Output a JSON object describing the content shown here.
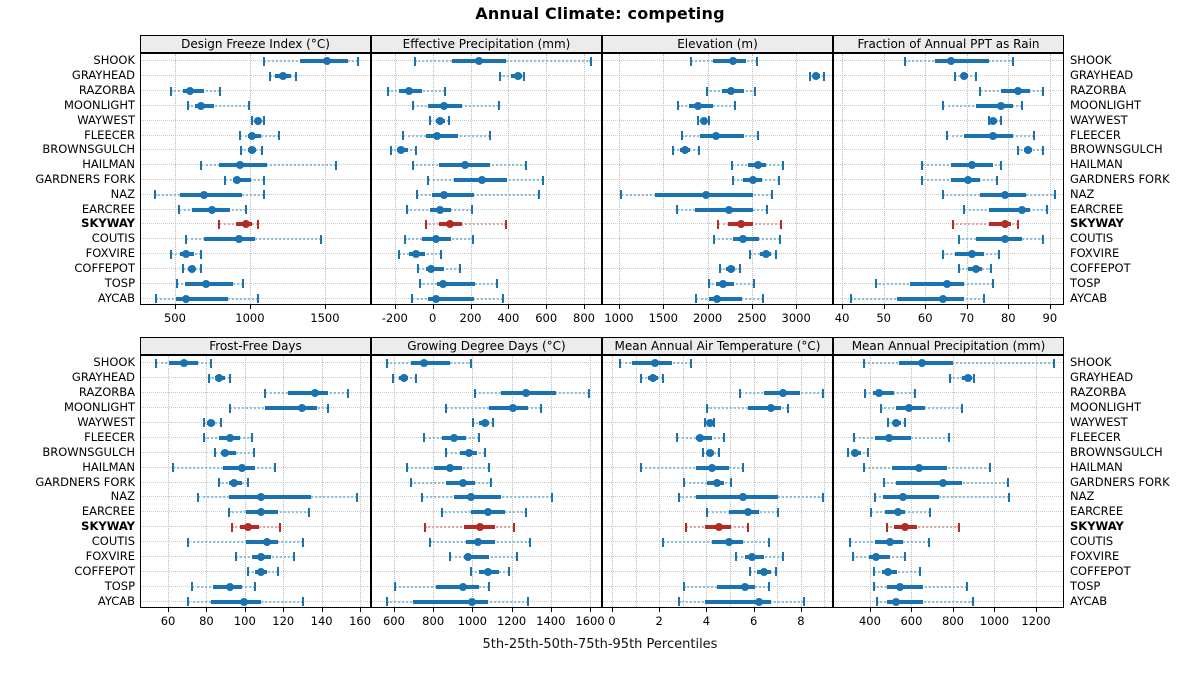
{
  "title": "Annual Climate: competing",
  "caption": "5th-25th-50th-75th-95th Percentiles",
  "colors": {
    "normal": "#1a72b0",
    "normal_light": "#8fc0de",
    "highlight": "#b32a26",
    "highlight_light": "#e0a9a4",
    "strip_bg": "#ececec",
    "grid": "#c4c4c4",
    "border": "#000000"
  },
  "chart_data": {
    "type": "dotplot-interval",
    "percentiles": [
      "5th",
      "25th",
      "50th",
      "75th",
      "95th"
    ],
    "legend_note": "thin whisker = 5th-95th, thick bar = 25th-75th, dot = median",
    "sites": [
      "SHOOK",
      "GRAYHEAD",
      "RAZORBA",
      "MOONLIGHT",
      "WAYWEST",
      "FLEECER",
      "BROWNSGULCH",
      "HAILMAN",
      "GARDNERS FORK",
      "NAZ",
      "EARCREE",
      "SKYWAY",
      "COUTIS",
      "FOXVIRE",
      "COFFEPOT",
      "TOSP",
      "AYCAB"
    ],
    "highlight_site": "SKYWAY",
    "panels": [
      {
        "label": "Design Freeze Index (°C)",
        "row": 0,
        "col": 0,
        "xlim": [
          267,
          1807
        ],
        "ticks": [
          500,
          1000,
          1500
        ],
        "values": [
          [
            1090,
            1330,
            1510,
            1650,
            1715
          ],
          [
            1130,
            1160,
            1215,
            1265,
            1300
          ],
          [
            470,
            545,
            595,
            690,
            795
          ],
          [
            580,
            625,
            665,
            755,
            985
          ],
          [
            1005,
            1030,
            1045,
            1060,
            1085
          ],
          [
            930,
            980,
            1010,
            1070,
            1185
          ],
          [
            935,
            980,
            1005,
            1035,
            1075
          ],
          [
            665,
            785,
            930,
            1105,
            1570
          ],
          [
            830,
            880,
            910,
            1000,
            1090
          ],
          [
            360,
            530,
            690,
            940,
            1090
          ],
          [
            520,
            610,
            740,
            860,
            970
          ],
          [
            790,
            900,
            965,
            1010,
            1050
          ],
          [
            565,
            690,
            920,
            1030,
            1470
          ],
          [
            470,
            525,
            570,
            620,
            665
          ],
          [
            545,
            580,
            605,
            630,
            665
          ],
          [
            505,
            560,
            700,
            880,
            950
          ],
          [
            365,
            500,
            570,
            845,
            1050
          ]
        ]
      },
      {
        "label": "Effective Precipitation (mm)",
        "row": 0,
        "col": 1,
        "xlim": [
          -326,
          895
        ],
        "ticks": [
          -200,
          0,
          200,
          400,
          600,
          800
        ],
        "values": [
          [
            -100,
            95,
            240,
            380,
            830
          ],
          [
            350,
            410,
            445,
            465,
            480
          ],
          [
            -240,
            -185,
            -130,
            -60,
            60
          ],
          [
            -110,
            -30,
            55,
            150,
            345
          ],
          [
            -20,
            10,
            35,
            60,
            80
          ],
          [
            -160,
            -40,
            20,
            130,
            300
          ],
          [
            -225,
            -195,
            -175,
            -135,
            -95
          ],
          [
            -110,
            30,
            165,
            300,
            490
          ],
          [
            -30,
            110,
            255,
            390,
            580
          ],
          [
            -90,
            -10,
            55,
            215,
            555
          ],
          [
            -140,
            -20,
            35,
            90,
            205
          ],
          [
            -40,
            30,
            85,
            150,
            380
          ],
          [
            -150,
            -60,
            10,
            90,
            210
          ],
          [
            -185,
            -130,
            -95,
            -45,
            40
          ],
          [
            -85,
            -40,
            -15,
            55,
            140
          ],
          [
            -70,
            20,
            50,
            220,
            335
          ],
          [
            -115,
            -30,
            10,
            215,
            365
          ]
        ]
      },
      {
        "label": "Elevation (m)",
        "row": 0,
        "col": 2,
        "xlim": [
          808,
          3416
        ],
        "ticks": [
          1000,
          1500,
          2000,
          2500,
          3000
        ],
        "values": [
          [
            1800,
            2050,
            2280,
            2420,
            2550
          ],
          [
            3145,
            3175,
            3210,
            3255,
            3300
          ],
          [
            1980,
            2150,
            2250,
            2400,
            2520
          ],
          [
            1650,
            1780,
            1880,
            2050,
            2300
          ],
          [
            1880,
            1925,
            1950,
            1975,
            2005
          ],
          [
            1700,
            1900,
            2080,
            2400,
            2560
          ],
          [
            1600,
            1680,
            1730,
            1790,
            1890
          ],
          [
            2270,
            2450,
            2560,
            2650,
            2840
          ],
          [
            2280,
            2390,
            2500,
            2600,
            2790
          ],
          [
            1010,
            1400,
            1970,
            2500,
            2720
          ],
          [
            1640,
            1850,
            2230,
            2500,
            2660
          ],
          [
            2110,
            2220,
            2370,
            2500,
            2820
          ],
          [
            2060,
            2280,
            2390,
            2570,
            2810
          ],
          [
            2470,
            2580,
            2650,
            2700,
            2760
          ],
          [
            2130,
            2200,
            2250,
            2300,
            2360
          ],
          [
            2000,
            2080,
            2160,
            2290,
            2510
          ],
          [
            1860,
            2000,
            2090,
            2380,
            2610
          ]
        ]
      },
      {
        "label": "Fraction of Annual PPT as Rain",
        "row": 0,
        "col": 3,
        "xlim": [
          37.8,
          93.4
        ],
        "ticks": [
          40,
          50,
          60,
          70,
          80,
          90
        ],
        "values": [
          [
            55,
            62,
            66,
            75,
            81
          ],
          [
            67,
            68.5,
            69,
            70,
            72
          ],
          [
            73,
            78,
            82,
            85,
            88
          ],
          [
            64,
            72,
            78,
            81,
            83
          ],
          [
            75,
            75.5,
            76,
            77,
            78
          ],
          [
            65,
            69,
            76,
            81,
            86
          ],
          [
            82,
            83.5,
            84.5,
            85.5,
            88
          ],
          [
            59,
            66,
            71,
            76,
            78
          ],
          [
            59,
            66,
            70,
            73,
            77
          ],
          [
            64,
            73,
            79,
            84,
            91
          ],
          [
            69,
            75,
            83,
            85,
            89
          ],
          [
            66.5,
            75,
            79,
            80.5,
            82
          ],
          [
            68,
            72,
            79,
            83,
            88
          ],
          [
            64,
            67,
            71,
            74,
            77.5
          ],
          [
            68,
            70,
            72,
            73.5,
            75.5
          ],
          [
            48,
            56,
            65,
            69,
            76
          ],
          [
            42,
            53,
            64,
            69,
            74
          ]
        ]
      },
      {
        "label": "Frost-Free Days",
        "row": 1,
        "col": 0,
        "xlim": [
          45.4,
          165.7
        ],
        "ticks": [
          60,
          80,
          100,
          120,
          140,
          160
        ],
        "values": [
          [
            53,
            60,
            68,
            75,
            82
          ],
          [
            81,
            84,
            86,
            89,
            92
          ],
          [
            110,
            122,
            136,
            143,
            153
          ],
          [
            92,
            110,
            129,
            137,
            143
          ],
          [
            78,
            80,
            82,
            84,
            87
          ],
          [
            78,
            86,
            92,
            97,
            103
          ],
          [
            84,
            87,
            89,
            95,
            104
          ],
          [
            62,
            88,
            98,
            105,
            115
          ],
          [
            86,
            91,
            94,
            98,
            101
          ],
          [
            75,
            91,
            108,
            134,
            158
          ],
          [
            91,
            100,
            108,
            117,
            133
          ],
          [
            93,
            97,
            101,
            107,
            118
          ],
          [
            70,
            100,
            111,
            117,
            130
          ],
          [
            95,
            103,
            108,
            113,
            125
          ],
          [
            101,
            105,
            108,
            111,
            117
          ],
          [
            72,
            83,
            92,
            98,
            105
          ],
          [
            70,
            82,
            99,
            108,
            130
          ]
        ]
      },
      {
        "label": "Growing Degree Days (°C)",
        "row": 1,
        "col": 1,
        "xlim": [
          483,
          1661
        ],
        "ticks": [
          600,
          800,
          1000,
          1200,
          1400,
          1600
        ],
        "values": [
          [
            560,
            680,
            750,
            880,
            990
          ],
          [
            590,
            620,
            645,
            665,
            705
          ],
          [
            1010,
            1140,
            1270,
            1420,
            1590
          ],
          [
            860,
            1080,
            1200,
            1280,
            1345
          ],
          [
            1000,
            1030,
            1060,
            1080,
            1100
          ],
          [
            750,
            840,
            900,
            960,
            1030
          ],
          [
            860,
            930,
            980,
            1020,
            1060
          ],
          [
            660,
            800,
            880,
            940,
            1080
          ],
          [
            680,
            860,
            945,
            1010,
            1090
          ],
          [
            740,
            900,
            990,
            1140,
            1400
          ],
          [
            840,
            990,
            1075,
            1160,
            1270
          ],
          [
            755,
            950,
            1035,
            1110,
            1205
          ],
          [
            780,
            960,
            1025,
            1110,
            1290
          ],
          [
            880,
            950,
            975,
            1080,
            1220
          ],
          [
            990,
            1030,
            1075,
            1130,
            1180
          ],
          [
            600,
            810,
            945,
            1030,
            1080
          ],
          [
            560,
            690,
            995,
            1075,
            1280
          ]
        ]
      },
      {
        "label": "Mean Annual Air Temperature (°C)",
        "row": 1,
        "col": 2,
        "xlim": [
          -0.42,
          9.36
        ],
        "ticks": [
          0,
          2,
          4,
          6,
          8
        ],
        "grid_ticks": [
          0,
          1,
          2,
          3,
          4,
          5,
          6,
          7,
          8,
          9
        ],
        "values": [
          [
            0.3,
            0.8,
            1.8,
            2.5,
            3.3
          ],
          [
            1.2,
            1.5,
            1.7,
            1.9,
            2.1
          ],
          [
            5.4,
            6.4,
            7.2,
            7.9,
            8.9
          ],
          [
            4.0,
            5.7,
            6.7,
            7.1,
            7.4
          ],
          [
            3.9,
            4.0,
            4.1,
            4.2,
            4.3
          ],
          [
            2.7,
            3.5,
            3.7,
            4.2,
            4.7
          ],
          [
            3.8,
            4.0,
            4.1,
            4.3,
            4.5
          ],
          [
            1.2,
            3.5,
            4.2,
            4.9,
            5.5
          ],
          [
            3.0,
            4.0,
            4.4,
            4.7,
            5.0
          ],
          [
            2.8,
            3.5,
            5.5,
            7.0,
            8.9
          ],
          [
            4.0,
            4.9,
            5.7,
            6.2,
            7.0
          ],
          [
            3.1,
            3.9,
            4.5,
            5.0,
            5.7
          ],
          [
            2.1,
            4.2,
            4.9,
            5.5,
            6.6
          ],
          [
            5.2,
            5.6,
            5.9,
            6.4,
            7.2
          ],
          [
            5.8,
            6.1,
            6.4,
            6.7,
            6.9
          ],
          [
            3.0,
            4.4,
            5.6,
            6.0,
            6.6
          ],
          [
            2.8,
            3.9,
            6.2,
            6.7,
            8.1
          ]
        ]
      },
      {
        "label": "Mean Annual Precipitation (mm)",
        "row": 1,
        "col": 3,
        "xlim": [
          222,
          1335
        ],
        "ticks": [
          400,
          600,
          800,
          1000,
          1200
        ],
        "values": [
          [
            365,
            535,
            645,
            795,
            1280
          ],
          [
            780,
            840,
            870,
            885,
            895
          ],
          [
            370,
            410,
            440,
            510,
            610
          ],
          [
            450,
            520,
            585,
            660,
            840
          ],
          [
            480,
            505,
            520,
            545,
            565
          ],
          [
            320,
            420,
            485,
            595,
            775
          ],
          [
            290,
            310,
            325,
            350,
            385
          ],
          [
            365,
            500,
            630,
            765,
            975
          ],
          [
            465,
            520,
            745,
            840,
            1060
          ],
          [
            420,
            460,
            555,
            730,
            1065
          ],
          [
            400,
            470,
            530,
            565,
            685
          ],
          [
            475,
            510,
            565,
            620,
            825
          ],
          [
            300,
            420,
            490,
            555,
            680
          ],
          [
            315,
            390,
            425,
            490,
            565
          ],
          [
            415,
            455,
            480,
            525,
            635
          ],
          [
            415,
            475,
            540,
            650,
            865
          ],
          [
            430,
            475,
            520,
            650,
            890
          ]
        ]
      }
    ]
  }
}
